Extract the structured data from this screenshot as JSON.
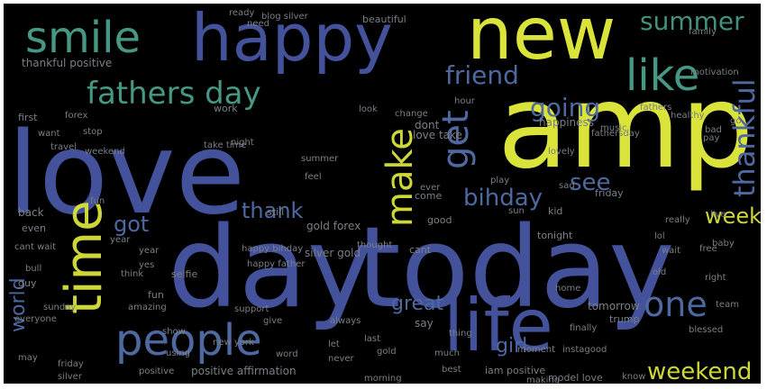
{
  "palette": {
    "background": "#000000",
    "frame": "#ffffff",
    "yellow": "#d9e33a",
    "blue": "#43529a",
    "slate": "#4e68a0",
    "teal": "#4aa08c",
    "green": "#56b570",
    "purple": "#3c2a62",
    "gray": "#7a7e86"
  },
  "words": [
    {
      "text": "love",
      "color": "blue",
      "orientation": "horizontal"
    },
    {
      "text": "amp",
      "color": "yellow",
      "orientation": "horizontal"
    },
    {
      "text": "today",
      "color": "blue",
      "orientation": "horizontal"
    },
    {
      "text": "day",
      "color": "blue",
      "orientation": "horizontal"
    },
    {
      "text": "happy",
      "color": "blue",
      "orientation": "horizontal"
    },
    {
      "text": "new",
      "color": "yellow",
      "orientation": "horizontal"
    },
    {
      "text": "life",
      "color": "blue",
      "orientation": "horizontal"
    },
    {
      "text": "time",
      "color": "yellow",
      "orientation": "vertical"
    },
    {
      "text": "smile",
      "color": "teal",
      "orientation": "horizontal"
    },
    {
      "text": "people",
      "color": "slate",
      "orientation": "horizontal"
    },
    {
      "text": "like",
      "color": "teal",
      "orientation": "horizontal"
    },
    {
      "text": "fathers day",
      "color": "teal",
      "orientation": "horizontal"
    },
    {
      "text": "make",
      "color": "yellow",
      "orientation": "vertical"
    },
    {
      "text": "get",
      "color": "slate",
      "orientation": "vertical"
    },
    {
      "text": "one",
      "color": "slate",
      "orientation": "horizontal"
    },
    {
      "text": "summer",
      "color": "teal",
      "orientation": "horizontal"
    },
    {
      "text": "friend",
      "color": "slate",
      "orientation": "horizontal"
    },
    {
      "text": "going",
      "color": "slate",
      "orientation": "horizontal"
    },
    {
      "text": "thankful",
      "color": "slate",
      "orientation": "vertical"
    },
    {
      "text": "see",
      "color": "slate",
      "orientation": "horizontal"
    },
    {
      "text": "bihday",
      "color": "slate",
      "orientation": "horizontal"
    },
    {
      "text": "got",
      "color": "slate",
      "orientation": "horizontal"
    },
    {
      "text": "thank",
      "color": "slate",
      "orientation": "horizontal"
    },
    {
      "text": "week",
      "color": "yellow",
      "orientation": "horizontal"
    },
    {
      "text": "weekend",
      "color": "yellow",
      "orientation": "horizontal"
    },
    {
      "text": "world",
      "color": "slate",
      "orientation": "vertical"
    },
    {
      "text": "girl",
      "color": "slate",
      "orientation": "horizontal"
    },
    {
      "text": "great",
      "color": "slate",
      "orientation": "horizontal"
    },
    {
      "text": "thankful positive",
      "color": "gray",
      "orientation": "horizontal"
    },
    {
      "text": "beautiful",
      "color": "gray",
      "orientation": "horizontal"
    },
    {
      "text": "blog silver",
      "color": "gray",
      "orientation": "horizontal"
    },
    {
      "text": "work",
      "color": "gray",
      "orientation": "horizontal"
    },
    {
      "text": "first",
      "color": "gray",
      "orientation": "horizontal"
    },
    {
      "text": "back",
      "color": "gray",
      "orientation": "horizontal"
    },
    {
      "text": "even",
      "color": "gray",
      "orientation": "horizontal"
    },
    {
      "text": "dont",
      "color": "gray",
      "orientation": "horizontal"
    },
    {
      "text": "love take",
      "color": "gray",
      "orientation": "horizontal"
    },
    {
      "text": "happiness",
      "color": "gray",
      "orientation": "horizontal"
    },
    {
      "text": "gold forex",
      "color": "gray",
      "orientation": "horizontal"
    },
    {
      "text": "silver gold",
      "color": "gray",
      "orientation": "horizontal"
    },
    {
      "text": "still",
      "color": "gray",
      "orientation": "horizontal"
    },
    {
      "text": "come",
      "color": "gray",
      "orientation": "horizontal"
    },
    {
      "text": "good",
      "color": "gray",
      "orientation": "horizontal"
    },
    {
      "text": "tonight",
      "color": "gray",
      "orientation": "horizontal"
    },
    {
      "text": "kid",
      "color": "gray",
      "orientation": "horizontal"
    },
    {
      "text": "cant wait",
      "color": "gray",
      "orientation": "horizontal"
    },
    {
      "text": "year",
      "color": "gray",
      "orientation": "horizontal"
    },
    {
      "text": "selfie",
      "color": "gray",
      "orientation": "horizontal"
    },
    {
      "text": "fun",
      "color": "gray",
      "orientation": "horizontal"
    },
    {
      "text": "amazing",
      "color": "gray",
      "orientation": "horizontal"
    },
    {
      "text": "tomorrow",
      "color": "gray",
      "orientation": "horizontal"
    },
    {
      "text": "trump",
      "color": "gray",
      "orientation": "horizontal"
    },
    {
      "text": "say",
      "color": "gray",
      "orientation": "horizontal"
    },
    {
      "text": "positive affirmation",
      "color": "gray",
      "orientation": "horizontal"
    },
    {
      "text": "iam positive",
      "color": "gray",
      "orientation": "horizontal"
    },
    {
      "text": "model love",
      "color": "gray",
      "orientation": "horizontal"
    },
    {
      "text": "best",
      "color": "gray",
      "orientation": "horizontal"
    },
    {
      "text": "guy",
      "color": "gray",
      "orientation": "horizontal"
    },
    {
      "text": "may",
      "color": "gray",
      "orientation": "horizontal"
    },
    {
      "text": "pay",
      "color": "gray",
      "orientation": "horizontal"
    },
    {
      "text": "bad",
      "color": "gray",
      "orientation": "horizontal"
    },
    {
      "text": "cant",
      "color": "gray",
      "orientation": "horizontal"
    },
    {
      "text": "family",
      "color": "gray",
      "orientation": "horizontal"
    },
    {
      "text": "ready",
      "color": "gray",
      "orientation": "horizontal"
    },
    {
      "text": "thing",
      "color": "gray",
      "orientation": "horizontal"
    },
    {
      "text": "always",
      "color": "gray",
      "orientation": "horizontal"
    },
    {
      "text": "sunday",
      "color": "gray",
      "orientation": "horizontal"
    },
    {
      "text": "live",
      "color": "gray",
      "orientation": "horizontal"
    },
    {
      "text": "really",
      "color": "gray",
      "orientation": "horizontal"
    },
    {
      "text": "know",
      "color": "gray",
      "orientation": "horizontal"
    },
    {
      "text": "last",
      "color": "gray",
      "orientation": "horizontal"
    },
    {
      "text": "need",
      "color": "gray",
      "orientation": "horizontal"
    },
    {
      "text": "look",
      "color": "gray",
      "orientation": "horizontal"
    },
    {
      "text": "baby",
      "color": "gray",
      "orientation": "horizontal"
    },
    {
      "text": "bull",
      "color": "gray",
      "orientation": "horizontal"
    },
    {
      "text": "music",
      "color": "gray",
      "orientation": "horizontal"
    },
    {
      "text": "feel",
      "color": "gray",
      "orientation": "horizontal"
    },
    {
      "text": "morning",
      "color": "gray",
      "orientation": "horizontal"
    },
    {
      "text": "night",
      "color": "gray",
      "orientation": "horizontal"
    },
    {
      "text": "support",
      "color": "gray",
      "orientation": "horizontal"
    },
    {
      "text": "fathers",
      "color": "gray",
      "orientation": "horizontal"
    },
    {
      "text": "fathersday",
      "color": "gray",
      "orientation": "horizontal"
    },
    {
      "text": "free",
      "color": "gray",
      "orientation": "horizontal"
    },
    {
      "text": "right",
      "color": "gray",
      "orientation": "horizontal"
    },
    {
      "text": "healthy",
      "color": "gray",
      "orientation": "horizontal"
    },
    {
      "text": "lol",
      "color": "gray",
      "orientation": "horizontal"
    },
    {
      "text": "play",
      "color": "gray",
      "orientation": "horizontal"
    },
    {
      "text": "friday",
      "color": "gray",
      "orientation": "horizontal"
    },
    {
      "text": "give",
      "color": "gray",
      "orientation": "horizontal"
    },
    {
      "text": "go",
      "color": "gray",
      "orientation": "horizontal"
    },
    {
      "text": "take time",
      "color": "gray",
      "orientation": "horizontal"
    },
    {
      "text": "happy bihday",
      "color": "gray",
      "orientation": "horizontal"
    },
    {
      "text": "happy father",
      "color": "gray",
      "orientation": "horizontal"
    },
    {
      "text": "everyone",
      "color": "gray",
      "orientation": "horizontal"
    },
    {
      "text": "finally",
      "color": "gray",
      "orientation": "horizontal"
    },
    {
      "text": "think",
      "color": "gray",
      "orientation": "horizontal"
    },
    {
      "text": "much",
      "color": "gray",
      "orientation": "horizontal"
    },
    {
      "text": "new york",
      "color": "gray",
      "orientation": "horizontal"
    },
    {
      "text": "blessed",
      "color": "gray",
      "orientation": "horizontal"
    },
    {
      "text": "team",
      "color": "gray",
      "orientation": "horizontal"
    },
    {
      "text": "ever",
      "color": "gray",
      "orientation": "horizontal"
    },
    {
      "text": "thought",
      "color": "gray",
      "orientation": "horizontal"
    },
    {
      "text": "never",
      "color": "gray",
      "orientation": "horizontal"
    },
    {
      "text": "making",
      "color": "gray",
      "orientation": "horizontal"
    },
    {
      "text": "word",
      "color": "gray",
      "orientation": "horizontal"
    },
    {
      "text": "let",
      "color": "gray",
      "orientation": "horizontal"
    },
    {
      "text": "using",
      "color": "gray",
      "orientation": "horizontal"
    },
    {
      "text": "stop",
      "color": "gray",
      "orientation": "horizontal"
    },
    {
      "text": "change",
      "color": "gray",
      "orientation": "horizontal"
    },
    {
      "text": "hour",
      "color": "gray",
      "orientation": "horizontal"
    },
    {
      "text": "show",
      "color": "gray",
      "orientation": "horizontal"
    },
    {
      "text": "want",
      "color": "gray",
      "orientation": "horizontal"
    },
    {
      "text": "yes",
      "color": "gray",
      "orientation": "horizontal"
    },
    {
      "text": "lovely",
      "color": "gray",
      "orientation": "horizontal"
    },
    {
      "text": "moment",
      "color": "gray",
      "orientation": "horizontal"
    },
    {
      "text": "motivation",
      "color": "gray",
      "orientation": "horizontal"
    },
    {
      "text": "weekend",
      "color": "gray",
      "orientation": "horizontal"
    },
    {
      "text": "travel",
      "color": "gray",
      "orientation": "horizontal"
    },
    {
      "text": "sad",
      "color": "gray",
      "orientation": "horizontal"
    },
    {
      "text": "gold",
      "color": "gray",
      "orientation": "horizontal"
    },
    {
      "text": "silver",
      "color": "gray",
      "orientation": "horizontal"
    },
    {
      "text": "fun",
      "color": "gray",
      "orientation": "horizontal"
    },
    {
      "text": "sun",
      "color": "gray",
      "orientation": "horizontal"
    },
    {
      "text": "home",
      "color": "gray",
      "orientation": "horizontal"
    },
    {
      "text": "old",
      "color": "gray",
      "orientation": "horizontal"
    },
    {
      "text": "instagood",
      "color": "gray",
      "orientation": "horizontal"
    },
    {
      "text": "forex",
      "color": "gray",
      "orientation": "horizontal"
    },
    {
      "text": "summer",
      "color": "gray",
      "orientation": "horizontal"
    },
    {
      "text": "wait",
      "color": "gray",
      "orientation": "horizontal"
    },
    {
      "text": "year",
      "color": "gray",
      "orientation": "horizontal"
    },
    {
      "text": "positive",
      "color": "gray",
      "orientation": "horizontal"
    },
    {
      "text": "friday",
      "color": "gray",
      "orientation": "horizontal"
    }
  ]
}
